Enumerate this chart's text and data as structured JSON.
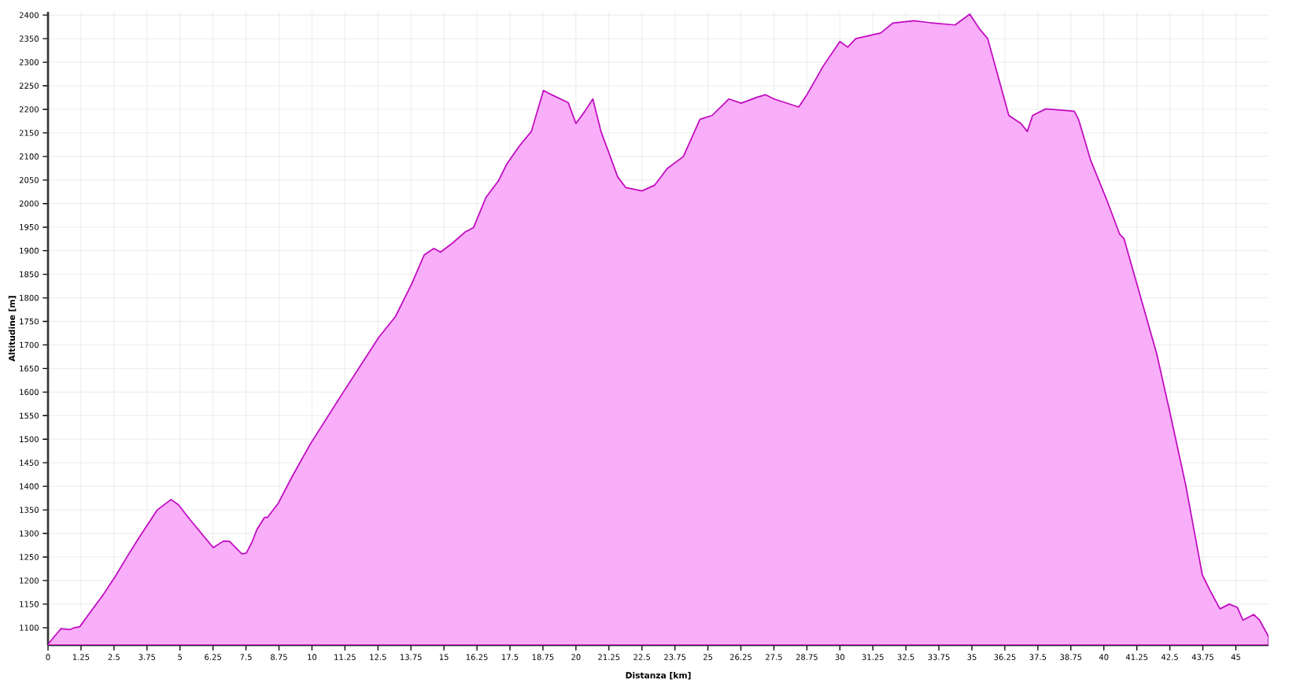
{
  "chart_data": {
    "type": "area",
    "xlabel": "Distanza [km]",
    "ylabel": "Altitudine [m]",
    "color": "#f9aef9",
    "x": [
      0,
      0.49,
      0.83,
      1.0,
      1.2,
      1.63,
      2.09,
      2.55,
      3.0,
      3.46,
      4.14,
      4.66,
      4.94,
      5.4,
      6.26,
      6.65,
      6.88,
      7.23,
      7.34,
      7.51,
      7.74,
      7.91,
      8.2,
      8.31,
      8.71,
      9.28,
      9.95,
      11.13,
      12.54,
      13.16,
      13.78,
      14.25,
      14.62,
      14.87,
      15.34,
      15.81,
      16.12,
      16.59,
      17.06,
      17.37,
      17.84,
      18.31,
      18.77,
      19.08,
      19.71,
      20.0,
      20.34,
      20.64,
      20.95,
      21.58,
      21.89,
      22.5,
      22.98,
      23.45,
      24.07,
      24.7,
      25.16,
      25.79,
      26.26,
      26.88,
      27.19,
      27.5,
      28.44,
      28.75,
      29.37,
      30.0,
      30.3,
      30.6,
      31.55,
      32.0,
      32.8,
      33.4,
      34.36,
      34.92,
      35.3,
      35.6,
      36.4,
      36.86,
      37.1,
      37.3,
      37.8,
      38.88,
      39.04,
      39.5,
      40.13,
      40.6,
      40.76,
      41.38,
      42.0,
      42.49,
      43.1,
      43.73,
      44.04,
      44.4,
      44.75,
      45.06,
      45.27,
      45.68,
      45.9,
      46.24
    ],
    "values": [
      1065,
      1098,
      1096,
      1100,
      1102,
      1135,
      1170,
      1209,
      1251,
      1292,
      1350,
      1372,
      1361,
      1328,
      1270,
      1284,
      1283,
      1263,
      1257,
      1258,
      1283,
      1308,
      1334,
      1334,
      1363,
      1424,
      1491,
      1595,
      1717,
      1760,
      1830,
      1891,
      1905,
      1897,
      1917,
      1940,
      1949,
      2013,
      2048,
      2083,
      2121,
      2153,
      2240,
      2231,
      2214,
      2170,
      2196,
      2222,
      2153,
      2057,
      2034,
      2027,
      2039,
      2074,
      2100,
      2179,
      2187,
      2222,
      2213,
      2226,
      2231,
      2222,
      2205,
      2231,
      2292,
      2344,
      2332,
      2350,
      2362,
      2383,
      2388,
      2384,
      2379,
      2402,
      2370,
      2350,
      2187,
      2170,
      2153,
      2187,
      2201,
      2196,
      2179,
      2092,
      2005,
      1935,
      1926,
      1804,
      1682,
      1560,
      1403,
      1212,
      1177,
      1140,
      1150,
      1143,
      1116,
      1128,
      1116,
      1081
    ],
    "xlim": [
      0,
      46.24
    ],
    "ylim": [
      1063,
      2407
    ],
    "xticks": [
      0,
      1.25,
      2.5,
      3.75,
      5,
      6.25,
      7.5,
      8.75,
      10,
      11.25,
      12.5,
      13.75,
      15,
      16.25,
      17.5,
      18.75,
      20,
      21.25,
      22.5,
      23.75,
      25,
      26.25,
      27.5,
      28.75,
      30,
      31.25,
      32.5,
      33.75,
      35,
      36.25,
      37.5,
      38.75,
      40,
      41.25,
      42.5,
      43.75,
      45
    ],
    "yticks": [
      1100,
      1150,
      1200,
      1250,
      1300,
      1350,
      1400,
      1450,
      1500,
      1550,
      1600,
      1650,
      1700,
      1750,
      1800,
      1850,
      1900,
      1950,
      2000,
      2050,
      2100,
      2150,
      2200,
      2250,
      2300,
      2350,
      2400
    ],
    "grid": true
  }
}
